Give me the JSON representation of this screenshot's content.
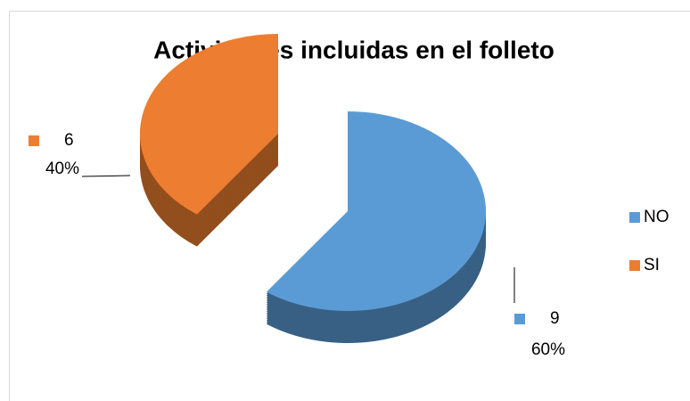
{
  "chart_data": {
    "type": "pie",
    "title": "Actividades incluidas en el folleto",
    "categories": [
      "NO",
      "SI"
    ],
    "values": [
      9,
      6
    ],
    "percent": [
      60,
      40
    ],
    "percent_labels": [
      "60%",
      "40%"
    ],
    "colors": [
      "#5b9bd5",
      "#ed7d31"
    ],
    "legend": "right"
  }
}
